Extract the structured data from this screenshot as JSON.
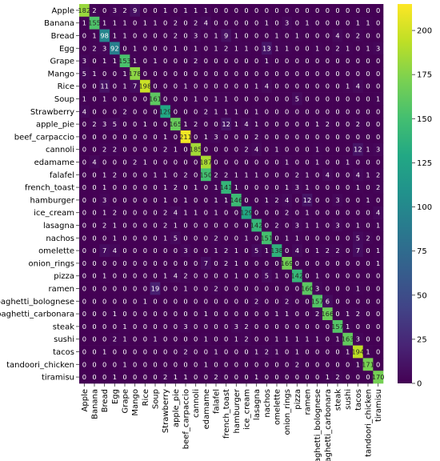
{
  "chart_data": {
    "type": "heatmap",
    "title": "",
    "xlabel": "",
    "ylabel": "",
    "colormap": "viridis",
    "colors": {
      "low": "#440154",
      "high": "#fde725"
    },
    "vmin": 0,
    "vmax": 215,
    "colorbar_ticks": [
      0,
      25,
      50,
      75,
      100,
      125,
      150,
      175,
      200
    ],
    "x_categories": [
      "Apple",
      "Banana",
      "Bread",
      "Egg",
      "Grape",
      "Mango",
      "Rice",
      "Soup",
      "Strawberry",
      "apple_pie",
      "beef_carpaccio",
      "cannoli",
      "edamame",
      "falafel",
      "french_toast",
      "hamburger",
      "ice_cream",
      "lasagna",
      "nachos",
      "omelette",
      "onion_rings",
      "pizza",
      "ramen",
      "spaghetti_bolognese",
      "spaghetti_carbonara",
      "steak",
      "sushi",
      "tacos",
      "tandoori_chicken",
      "tiramisu"
    ],
    "y_categories": [
      "Apple",
      "Banana",
      "Bread",
      "Egg",
      "Grape",
      "Mango",
      "Rice",
      "Soup",
      "Strawberry",
      "apple_pie",
      "beef_carpaccio",
      "cannoli",
      "edamame",
      "falafel",
      "french_toast",
      "hamburger",
      "ice_cream",
      "lasagna",
      "nachos",
      "omelette",
      "onion_rings",
      "pizza",
      "ramen",
      "spaghetti_bolognese",
      "spaghetti_carbonara",
      "steak",
      "sushi",
      "tacos",
      "tandoori_chicken",
      "tiramisu"
    ],
    "values": [
      [
        182,
        2,
        0,
        3,
        2,
        9,
        0,
        0,
        1,
        0,
        1,
        1,
        1,
        0,
        0,
        0,
        0,
        0,
        0,
        0,
        0,
        0,
        0,
        0,
        0,
        0,
        0,
        0,
        0,
        0
      ],
      [
        1,
        155,
        1,
        1,
        1,
        0,
        1,
        1,
        0,
        2,
        0,
        2,
        4,
        0,
        0,
        0,
        0,
        0,
        1,
        0,
        3,
        0,
        1,
        0,
        0,
        0,
        0,
        1,
        1,
        0
      ],
      [
        0,
        1,
        98,
        1,
        1,
        0,
        0,
        0,
        0,
        2,
        0,
        3,
        0,
        1,
        9,
        1,
        0,
        0,
        0,
        1,
        0,
        1,
        0,
        0,
        0,
        4,
        0,
        2,
        0,
        0
      ],
      [
        0,
        2,
        3,
        92,
        0,
        1,
        0,
        0,
        0,
        1,
        0,
        1,
        0,
        1,
        2,
        1,
        1,
        0,
        13,
        1,
        1,
        0,
        0,
        1,
        0,
        2,
        1,
        0,
        1,
        3
      ],
      [
        3,
        0,
        1,
        1,
        153,
        1,
        0,
        1,
        0,
        0,
        0,
        2,
        0,
        0,
        0,
        0,
        0,
        0,
        1,
        0,
        0,
        0,
        0,
        0,
        0,
        0,
        0,
        0,
        0,
        0
      ],
      [
        5,
        1,
        0,
        0,
        1,
        178,
        0,
        0,
        0,
        0,
        0,
        0,
        0,
        0,
        0,
        0,
        0,
        0,
        0,
        0,
        0,
        0,
        0,
        0,
        0,
        0,
        0,
        0,
        0,
        0
      ],
      [
        0,
        0,
        11,
        0,
        1,
        7,
        198,
        0,
        0,
        0,
        1,
        0,
        0,
        0,
        0,
        0,
        0,
        1,
        4,
        0,
        0,
        0,
        0,
        0,
        0,
        0,
        1,
        4,
        0,
        0
      ],
      [
        1,
        0,
        1,
        0,
        0,
        0,
        0,
        161,
        0,
        0,
        0,
        1,
        0,
        1,
        1,
        0,
        0,
        0,
        0,
        0,
        0,
        5,
        0,
        0,
        0,
        0,
        0,
        0,
        0,
        1
      ],
      [
        4,
        0,
        0,
        0,
        2,
        0,
        0,
        0,
        129,
        0,
        0,
        0,
        2,
        1,
        1,
        1,
        0,
        1,
        0,
        0,
        0,
        0,
        0,
        0,
        0,
        0,
        0,
        0,
        0,
        0
      ],
      [
        0,
        2,
        3,
        5,
        0,
        0,
        1,
        0,
        0,
        165,
        1,
        2,
        0,
        0,
        12,
        1,
        4,
        1,
        0,
        0,
        0,
        0,
        0,
        1,
        2,
        0,
        0,
        2,
        0,
        0
      ],
      [
        0,
        0,
        0,
        0,
        0,
        0,
        0,
        0,
        1,
        0,
        211,
        0,
        1,
        3,
        0,
        0,
        0,
        2,
        0,
        0,
        0,
        0,
        0,
        0,
        0,
        0,
        0,
        0,
        0,
        0
      ],
      [
        0,
        0,
        2,
        2,
        0,
        0,
        0,
        0,
        2,
        1,
        0,
        185,
        0,
        0,
        0,
        0,
        2,
        4,
        0,
        1,
        0,
        0,
        0,
        1,
        0,
        0,
        0,
        12,
        1,
        3
      ],
      [
        0,
        4,
        0,
        0,
        0,
        2,
        1,
        0,
        0,
        0,
        0,
        0,
        187,
        0,
        0,
        0,
        0,
        0,
        0,
        0,
        1,
        0,
        0,
        1,
        0,
        0,
        1,
        0,
        0,
        0
      ],
      [
        0,
        0,
        1,
        2,
        0,
        0,
        0,
        1,
        1,
        0,
        2,
        0,
        150,
        2,
        2,
        1,
        1,
        1,
        0,
        0,
        0,
        2,
        1,
        0,
        4,
        0,
        0,
        4,
        1,
        2
      ],
      [
        0,
        0,
        1,
        0,
        0,
        0,
        0,
        0,
        1,
        2,
        0,
        1,
        0,
        1,
        141,
        1,
        0,
        0,
        0,
        0,
        1,
        3,
        1,
        0,
        0,
        0,
        0,
        1,
        0,
        2
      ],
      [
        0,
        0,
        3,
        0,
        0,
        0,
        0,
        0,
        1,
        0,
        1,
        0,
        0,
        1,
        1,
        146,
        0,
        0,
        1,
        2,
        4,
        0,
        12,
        0,
        0,
        3,
        0,
        0,
        1,
        0
      ],
      [
        0,
        0,
        1,
        2,
        0,
        0,
        0,
        0,
        2,
        4,
        1,
        1,
        0,
        1,
        0,
        0,
        129,
        0,
        0,
        0,
        2,
        0,
        1,
        0,
        0,
        0,
        0,
        0,
        0,
        4
      ],
      [
        0,
        0,
        2,
        1,
        0,
        0,
        0,
        0,
        2,
        1,
        0,
        0,
        0,
        0,
        0,
        0,
        0,
        142,
        0,
        2,
        0,
        3,
        1,
        1,
        0,
        3,
        0,
        1,
        0,
        1
      ],
      [
        0,
        0,
        0,
        1,
        0,
        0,
        0,
        0,
        1,
        5,
        0,
        0,
        0,
        2,
        0,
        0,
        1,
        0,
        151,
        0,
        1,
        1,
        0,
        0,
        0,
        0,
        0,
        5,
        2,
        0
      ],
      [
        0,
        0,
        7,
        4,
        0,
        0,
        0,
        0,
        0,
        0,
        3,
        0,
        0,
        1,
        2,
        1,
        0,
        5,
        1,
        138,
        0,
        4,
        0,
        1,
        2,
        2,
        0,
        7,
        0,
        1
      ],
      [
        0,
        0,
        0,
        0,
        0,
        0,
        0,
        0,
        0,
        0,
        0,
        0,
        7,
        0,
        2,
        1,
        0,
        0,
        0,
        0,
        169,
        0,
        0,
        0,
        0,
        0,
        0,
        0,
        0,
        1
      ],
      [
        0,
        0,
        1,
        0,
        0,
        0,
        0,
        0,
        1,
        4,
        2,
        0,
        0,
        0,
        0,
        1,
        0,
        0,
        5,
        1,
        0,
        142,
        0,
        1,
        0,
        0,
        0,
        0,
        0,
        0
      ],
      [
        0,
        0,
        0,
        0,
        0,
        0,
        0,
        19,
        0,
        0,
        1,
        0,
        0,
        2,
        0,
        0,
        0,
        0,
        0,
        0,
        0,
        0,
        160,
        3,
        0,
        0,
        0,
        1,
        0,
        0
      ],
      [
        0,
        0,
        0,
        0,
        0,
        0,
        1,
        0,
        0,
        0,
        0,
        0,
        0,
        0,
        0,
        0,
        0,
        2,
        0,
        0,
        2,
        0,
        0,
        157,
        6,
        0,
        0,
        0,
        0,
        0
      ],
      [
        0,
        0,
        0,
        1,
        0,
        0,
        0,
        0,
        0,
        0,
        0,
        0,
        1,
        0,
        0,
        0,
        0,
        0,
        0,
        1,
        1,
        0,
        0,
        2,
        166,
        0,
        1,
        2,
        0,
        0
      ],
      [
        0,
        0,
        0,
        0,
        1,
        0,
        0,
        0,
        0,
        0,
        3,
        0,
        0,
        0,
        0,
        3,
        2,
        0,
        0,
        0,
        0,
        0,
        0,
        0,
        0,
        157,
        1,
        0,
        0,
        0
      ],
      [
        0,
        0,
        0,
        2,
        1,
        0,
        0,
        1,
        0,
        0,
        0,
        0,
        1,
        0,
        0,
        1,
        2,
        0,
        0,
        1,
        1,
        1,
        1,
        1,
        0,
        1,
        163,
        3,
        0,
        0
      ],
      [
        0,
        0,
        1,
        0,
        0,
        0,
        0,
        0,
        0,
        0,
        2,
        0,
        0,
        1,
        0,
        0,
        0,
        1,
        2,
        1,
        0,
        1,
        0,
        0,
        0,
        0,
        1,
        194,
        1,
        0
      ],
      [
        0,
        0,
        0,
        0,
        1,
        0,
        0,
        0,
        0,
        0,
        0,
        0,
        1,
        0,
        0,
        0,
        0,
        0,
        0,
        0,
        0,
        2,
        0,
        0,
        0,
        0,
        0,
        1,
        171,
        0
      ],
      [
        0,
        0,
        0,
        1,
        0,
        0,
        0,
        0,
        2,
        1,
        1,
        0,
        0,
        2,
        0,
        0,
        0,
        1,
        0,
        0,
        0,
        0,
        0,
        0,
        1,
        2,
        0,
        0,
        0,
        170
      ]
    ]
  }
}
